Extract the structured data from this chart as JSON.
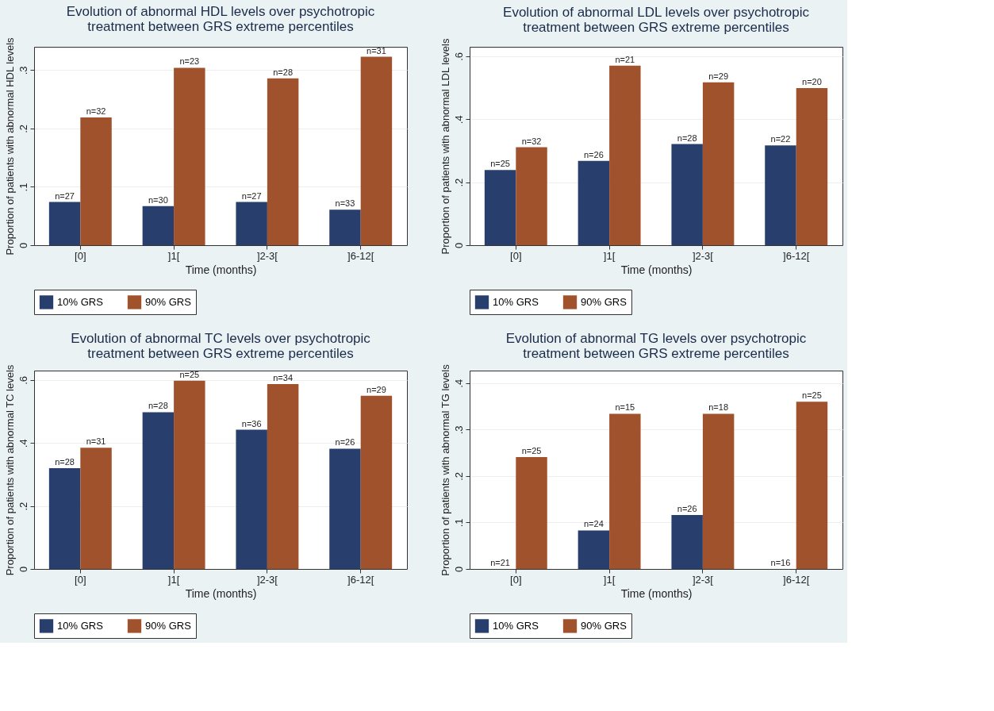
{
  "chart_data": [
    {
      "type": "bar",
      "title": "Evolution of abnormal HDL levels over psychotropic treatment between GRS extreme percentiles",
      "xlabel": "Time (months)",
      "ylabel": "Proportion of patients with abnormal HDL levels",
      "categories": [
        "[0]",
        "]1[",
        "]2-3[",
        "]6-12["
      ],
      "ylim": [
        0,
        0.34
      ],
      "yticks": [
        0,
        {
          "value": 0.1,
          "label": ".1"
        },
        {
          "value": 0.2,
          "label": ".2"
        },
        {
          "value": 0.3,
          "label": ".3"
        }
      ],
      "grid": "y",
      "legend": "bottom",
      "series": [
        {
          "name": "10% GRS",
          "color": "#283f6d",
          "values": [
            0.074,
            0.067,
            0.074,
            0.061
          ]
        },
        {
          "name": "90% GRS",
          "color": "#a0522d",
          "values": [
            0.219,
            0.304,
            0.286,
            0.323
          ]
        }
      ],
      "annotations": [
        {
          "text": "n=27",
          "x": "[0]",
          "y": 0.074
        },
        {
          "text": "n=30",
          "x": "]1[",
          "y": 0.067
        },
        {
          "text": "n=27",
          "x": "]2-3[",
          "y": 0.074
        },
        {
          "text": "n=33",
          "x": "]6-12[",
          "y": 0.061
        },
        {
          "text": "n=32",
          "x": "[0]",
          "y": 0.219
        },
        {
          "text": "n=23",
          "x": "]1[",
          "y": 0.304
        },
        {
          "text": "n=28",
          "x": "]2-3[",
          "y": 0.286
        },
        {
          "text": "n=31",
          "x": "]6-12[",
          "y": 0.323
        }
      ]
    },
    {
      "type": "bar",
      "title": "Evolution of abnormal LDL levels over psychotropic treatment between GRS extreme percentiles",
      "xlabel": "Time (months)",
      "ylabel": "Proportion of patients with abnormal LDL levels",
      "categories": [
        "[0]",
        "]1[",
        "]2-3[",
        "]6-12["
      ],
      "ylim": [
        0,
        0.63
      ],
      "yticks": [
        0,
        {
          "value": 0.2,
          "label": ".2"
        },
        {
          "value": 0.4,
          "label": ".4"
        },
        {
          "value": 0.6,
          "label": ".6"
        }
      ],
      "grid": "y",
      "legend": "bottom",
      "series": [
        {
          "name": "10% GRS",
          "color": "#283f6d",
          "values": [
            0.239,
            0.268,
            0.321,
            0.317
          ]
        },
        {
          "name": "90% GRS",
          "color": "#a0522d",
          "values": [
            0.311,
            0.57,
            0.517,
            0.499
          ]
        }
      ],
      "annotations": [
        {
          "text": "n=25",
          "x": "[0]",
          "y": 0.239
        },
        {
          "text": "n=26",
          "x": "]1[",
          "y": 0.268
        },
        {
          "text": "n=28",
          "x": "]2-3[",
          "y": 0.321
        },
        {
          "text": "n=22",
          "x": "]6-12[",
          "y": 0.317
        },
        {
          "text": "n=32",
          "x": "[0]",
          "y": 0.311
        },
        {
          "text": "n=21",
          "x": "]1[",
          "y": 0.57
        },
        {
          "text": "n=29",
          "x": "]2-3[",
          "y": 0.517
        },
        {
          "text": "n=20",
          "x": "]6-12[",
          "y": 0.499
        }
      ]
    },
    {
      "type": "bar",
      "title": "Evolution of abnormal TC levels over psychotropic treatment between GRS extreme percentiles",
      "xlabel": "Time (months)",
      "ylabel": "Proportion of patients with abnormal TC levels",
      "categories": [
        "[0]",
        "]1[",
        "]2-3[",
        "]6-12["
      ],
      "ylim": [
        0,
        0.63
      ],
      "yticks": [
        0,
        {
          "value": 0.2,
          "label": ".2"
        },
        {
          "value": 0.4,
          "label": ".4"
        },
        {
          "value": 0.6,
          "label": ".6"
        }
      ],
      "grid": "y",
      "legend": "bottom",
      "series": [
        {
          "name": "10% GRS",
          "color": "#283f6d",
          "values": [
            0.32,
            0.498,
            0.442,
            0.382
          ]
        },
        {
          "name": "90% GRS",
          "color": "#a0522d",
          "values": [
            0.385,
            0.598,
            0.587,
            0.55
          ]
        }
      ],
      "annotations": [
        {
          "text": "n=28",
          "x": "[0]",
          "y": 0.32
        },
        {
          "text": "n=28",
          "x": "]1[",
          "y": 0.498
        },
        {
          "text": "n=36",
          "x": "]2-3[",
          "y": 0.442
        },
        {
          "text": "n=26",
          "x": "]6-12[",
          "y": 0.382
        },
        {
          "text": "n=31",
          "x": "[0]",
          "y": 0.385
        },
        {
          "text": "n=25",
          "x": "]1[",
          "y": 0.598
        },
        {
          "text": "n=34",
          "x": "]2-3[",
          "y": 0.587
        },
        {
          "text": "n=29",
          "x": "]6-12[",
          "y": 0.55
        }
      ]
    },
    {
      "type": "bar",
      "title": "Evolution of abnormal TG levels over psychotropic treatment between GRS extreme percentiles",
      "xlabel": "Time (months)",
      "ylabel": "Proportion of patients with abnormal TG levels",
      "categories": [
        "[0]",
        "]1[",
        "]2-3[",
        "]6-12["
      ],
      "ylim": [
        0,
        0.427
      ],
      "yticks": [
        0,
        {
          "value": 0.1,
          "label": ".1"
        },
        {
          "value": 0.2,
          "label": ".2"
        },
        {
          "value": 0.3,
          "label": ".3"
        },
        {
          "value": 0.4,
          "label": ".4"
        }
      ],
      "grid": "y",
      "legend": "bottom",
      "series": [
        {
          "name": "10% GRS",
          "color": "#283f6d",
          "values": [
            0,
            0.083,
            0.116,
            0
          ]
        },
        {
          "name": "90% GRS",
          "color": "#a0522d",
          "values": [
            0.241,
            0.334,
            0.334,
            0.36
          ]
        }
      ],
      "annotations": [
        {
          "text": "n=21",
          "x": "[0]",
          "y": 0
        },
        {
          "text": "n=24",
          "x": "]1[",
          "y": 0.083
        },
        {
          "text": "n=26",
          "x": "]2-3[",
          "y": 0.116
        },
        {
          "text": "n=16",
          "x": "]6-12[",
          "y": 0
        },
        {
          "text": "n=25",
          "x": "[0]",
          "y": 0.241
        },
        {
          "text": "n=15",
          "x": "]1[",
          "y": 0.334
        },
        {
          "text": "n=18",
          "x": "]2-3[",
          "y": 0.334
        },
        {
          "text": "n=25",
          "x": "]6-12[",
          "y": 0.36
        }
      ]
    }
  ]
}
